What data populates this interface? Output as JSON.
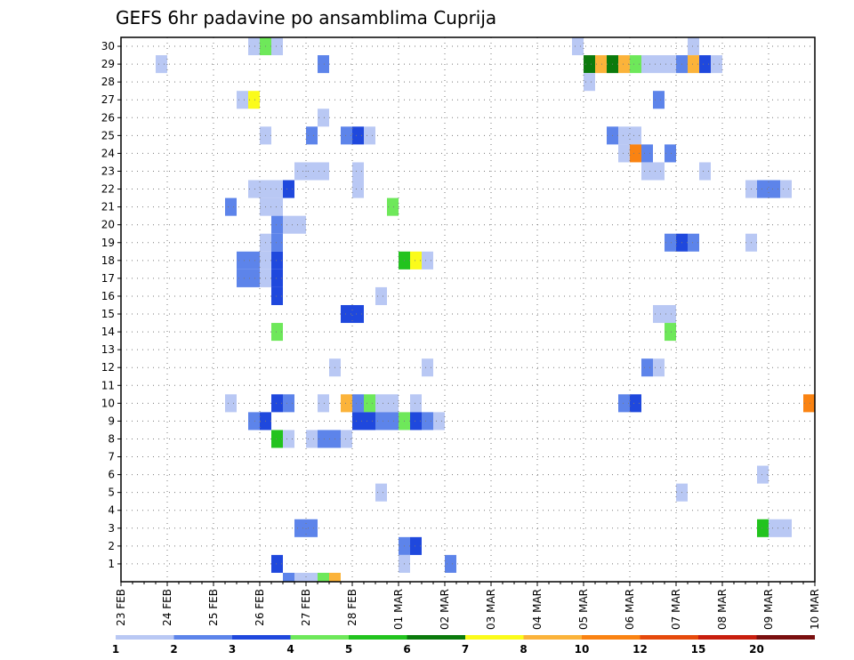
{
  "title": "GEFS 6hr padavine po ansamblima Cuprija",
  "chart_data": {
    "type": "heatmap",
    "title": "GEFS 6hr padavine po ansamblima Cuprija",
    "xlabel": "",
    "ylabel": "",
    "x_ticks": [
      "23 FEB",
      "24 FEB",
      "25 FEB",
      "26 FEB",
      "27 FEB",
      "28 FEB",
      "01 MAR",
      "02 MAR",
      "03 MAR",
      "04 MAR",
      "05 MAR",
      "06 MAR",
      "07 MAR",
      "08 MAR",
      "09 MAR",
      "10 MAR"
    ],
    "y_ticks": [
      1,
      2,
      3,
      4,
      5,
      6,
      7,
      8,
      9,
      10,
      11,
      12,
      13,
      14,
      15,
      16,
      17,
      18,
      19,
      20,
      21,
      22,
      23,
      24,
      25,
      26,
      27,
      28,
      29,
      30
    ],
    "xlim_hours": [
      0,
      360
    ],
    "ylim": [
      0,
      30.5
    ],
    "grid": true,
    "colorbar": {
      "labels": [
        "1",
        "2",
        "3",
        "4",
        "5",
        "6",
        "7",
        "8",
        "10",
        "12",
        "15",
        "20"
      ],
      "colors": [
        "#b9c8f4",
        "#5d84ea",
        "#1f48dd",
        "#6ee85a",
        "#22c31e",
        "#0b7a0c",
        "#fbfb1a",
        "#fbb33a",
        "#fa8312",
        "#e64a0c",
        "#c81e0e",
        "#7a0f0f"
      ]
    },
    "bin_edges": [
      1,
      2,
      3,
      4,
      5,
      6,
      7,
      8,
      10,
      12,
      15,
      20
    ],
    "cells": [
      [
        30,
        66,
        72,
        1
      ],
      [
        30,
        72,
        78,
        4
      ],
      [
        30,
        78,
        84,
        1
      ],
      [
        30,
        234,
        240,
        1
      ],
      [
        30,
        294,
        300,
        1
      ],
      [
        29,
        18,
        24,
        1
      ],
      [
        29,
        102,
        108,
        2
      ],
      [
        29,
        240,
        246,
        6
      ],
      [
        29,
        246,
        252,
        8
      ],
      [
        29,
        252,
        258,
        6
      ],
      [
        29,
        258,
        264,
        8
      ],
      [
        29,
        264,
        270,
        4
      ],
      [
        29,
        270,
        288,
        1
      ],
      [
        29,
        288,
        294,
        2
      ],
      [
        29,
        294,
        300,
        8
      ],
      [
        29,
        300,
        306,
        3
      ],
      [
        29,
        306,
        312,
        1
      ],
      [
        28,
        240,
        246,
        1
      ],
      [
        27,
        60,
        66,
        1
      ],
      [
        27,
        66,
        72,
        7
      ],
      [
        27,
        276,
        282,
        2
      ],
      [
        26,
        102,
        108,
        1
      ],
      [
        25,
        72,
        78,
        1
      ],
      [
        25,
        96,
        102,
        2
      ],
      [
        25,
        114,
        120,
        2
      ],
      [
        25,
        120,
        126,
        3
      ],
      [
        25,
        126,
        132,
        1
      ],
      [
        25,
        252,
        258,
        2
      ],
      [
        25,
        258,
        270,
        1
      ],
      [
        24,
        258,
        264,
        1
      ],
      [
        24,
        264,
        270,
        9
      ],
      [
        24,
        270,
        276,
        2
      ],
      [
        24,
        282,
        288,
        2
      ],
      [
        23,
        90,
        96,
        1
      ],
      [
        23,
        96,
        108,
        1
      ],
      [
        23,
        120,
        126,
        1
      ],
      [
        23,
        270,
        282,
        1
      ],
      [
        23,
        300,
        306,
        1
      ],
      [
        22,
        66,
        84,
        1
      ],
      [
        22,
        84,
        90,
        3
      ],
      [
        22,
        120,
        126,
        1
      ],
      [
        22,
        324,
        330,
        1
      ],
      [
        22,
        330,
        342,
        2
      ],
      [
        22,
        342,
        348,
        1
      ],
      [
        21,
        54,
        60,
        2
      ],
      [
        21,
        72,
        84,
        1
      ],
      [
        21,
        138,
        144,
        4
      ],
      [
        20,
        78,
        84,
        2
      ],
      [
        20,
        84,
        96,
        1
      ],
      [
        19,
        72,
        78,
        1
      ],
      [
        19,
        78,
        84,
        2
      ],
      [
        19,
        282,
        288,
        2
      ],
      [
        19,
        288,
        294,
        3
      ],
      [
        19,
        294,
        300,
        2
      ],
      [
        19,
        324,
        330,
        1
      ],
      [
        18,
        60,
        72,
        2
      ],
      [
        18,
        72,
        78,
        1
      ],
      [
        18,
        78,
        84,
        3
      ],
      [
        18,
        144,
        150,
        5
      ],
      [
        18,
        150,
        156,
        7
      ],
      [
        18,
        156,
        162,
        1
      ],
      [
        17,
        60,
        72,
        2
      ],
      [
        17,
        72,
        78,
        1
      ],
      [
        17,
        78,
        84,
        3
      ],
      [
        16,
        78,
        84,
        3
      ],
      [
        16,
        132,
        138,
        1
      ],
      [
        15,
        114,
        126,
        3
      ],
      [
        15,
        276,
        288,
        1
      ],
      [
        14,
        78,
        84,
        4
      ],
      [
        14,
        282,
        288,
        4
      ],
      [
        12,
        108,
        114,
        1
      ],
      [
        12,
        156,
        162,
        1
      ],
      [
        12,
        270,
        276,
        2
      ],
      [
        12,
        276,
        282,
        1
      ],
      [
        10,
        54,
        60,
        1
      ],
      [
        10,
        78,
        84,
        3
      ],
      [
        10,
        84,
        90,
        2
      ],
      [
        10,
        102,
        108,
        1
      ],
      [
        10,
        114,
        120,
        8
      ],
      [
        10,
        120,
        126,
        2
      ],
      [
        10,
        126,
        132,
        4
      ],
      [
        10,
        132,
        144,
        1
      ],
      [
        10,
        150,
        156,
        1
      ],
      [
        10,
        258,
        264,
        2
      ],
      [
        10,
        264,
        270,
        3
      ],
      [
        10,
        354,
        360,
        9
      ],
      [
        9,
        66,
        72,
        2
      ],
      [
        9,
        72,
        78,
        3
      ],
      [
        9,
        120,
        132,
        3
      ],
      [
        9,
        132,
        144,
        2
      ],
      [
        9,
        144,
        150,
        4
      ],
      [
        9,
        150,
        156,
        3
      ],
      [
        9,
        156,
        162,
        2
      ],
      [
        9,
        162,
        168,
        1
      ],
      [
        8,
        78,
        84,
        5
      ],
      [
        8,
        84,
        90,
        1
      ],
      [
        8,
        96,
        102,
        1
      ],
      [
        8,
        102,
        108,
        2
      ],
      [
        8,
        108,
        114,
        2
      ],
      [
        8,
        114,
        120,
        1
      ],
      [
        6,
        330,
        336,
        1
      ],
      [
        5,
        132,
        138,
        1
      ],
      [
        5,
        288,
        294,
        1
      ],
      [
        3,
        90,
        102,
        2
      ],
      [
        3,
        330,
        336,
        5
      ],
      [
        3,
        336,
        342,
        1
      ],
      [
        3,
        342,
        348,
        1
      ],
      [
        2,
        144,
        150,
        2
      ],
      [
        2,
        150,
        156,
        3
      ],
      [
        1,
        78,
        84,
        3
      ],
      [
        1,
        144,
        150,
        1
      ],
      [
        1,
        168,
        174,
        2
      ],
      [
        0,
        84,
        90,
        2
      ],
      [
        0,
        90,
        96,
        1
      ],
      [
        0,
        96,
        102,
        1
      ],
      [
        0,
        102,
        108,
        4
      ],
      [
        0,
        108,
        114,
        8
      ]
    ]
  }
}
